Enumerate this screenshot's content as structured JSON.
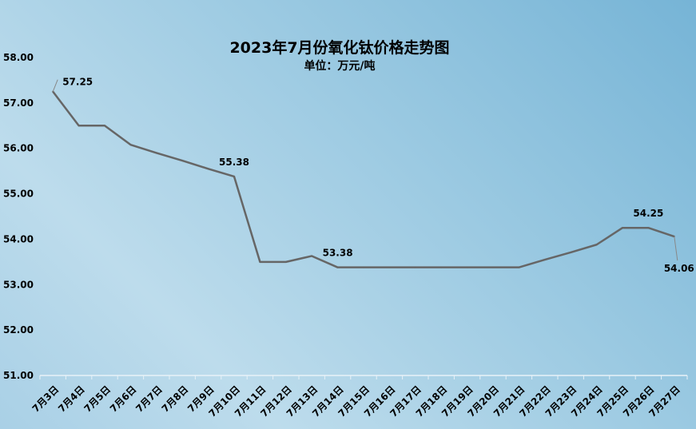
{
  "chart_data": {
    "type": "line",
    "title": "2023年7月份氧化钛价格走势图",
    "subtitle": "单位：万元/吨",
    "xlabel": "",
    "ylabel": "",
    "ylim": [
      51,
      58
    ],
    "yticks": [
      "51.00",
      "52.00",
      "53.00",
      "54.00",
      "55.00",
      "56.00",
      "57.00",
      "58.00"
    ],
    "grid": false,
    "categories": [
      "7月3日",
      "7月4日",
      "7月5日",
      "7月6日",
      "7月7日",
      "7月8日",
      "7月9日",
      "7月10日",
      "7月11日",
      "7月12日",
      "7月13日",
      "7月14日",
      "7月15日",
      "7月16日",
      "7月17日",
      "7月18日",
      "7月19日",
      "7月20日",
      "7月21日",
      "7月22日",
      "7月23日",
      "7月24日",
      "7月25日",
      "7月26日",
      "7月27日"
    ],
    "values": [
      57.25,
      56.5,
      56.5,
      56.08,
      55.9,
      55.73,
      55.55,
      55.38,
      53.5,
      53.5,
      53.63,
      53.38,
      53.38,
      53.38,
      53.38,
      53.38,
      53.38,
      53.38,
      53.38,
      53.55,
      53.71,
      53.88,
      54.25,
      54.25,
      54.06
    ],
    "data_labels": [
      {
        "index": 0,
        "text": "57.25"
      },
      {
        "index": 7,
        "text": "55.38"
      },
      {
        "index": 11,
        "text": "53.38"
      },
      {
        "index": 23,
        "text": "54.25"
      },
      {
        "index": 24,
        "text": "54.06"
      }
    ],
    "line_color": "#666666"
  }
}
